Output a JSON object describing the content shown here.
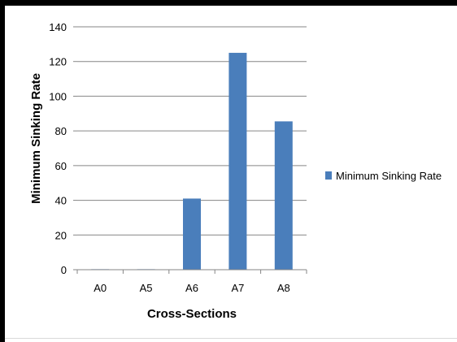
{
  "chart_data": {
    "type": "bar",
    "categories": [
      "A0",
      "A5",
      "A6",
      "A7",
      "A8"
    ],
    "series": [
      {
        "name": "Minimum Sinking Rate",
        "values": [
          0.3,
          0.3,
          41,
          125,
          85.5
        ],
        "color": "#4a7ebb"
      }
    ],
    "xlabel": "Cross-Sections",
    "ylabel": "Minimum Sinking Rate",
    "ylim": [
      0,
      140
    ],
    "yticks": [
      0,
      20,
      40,
      60,
      80,
      100,
      120,
      140
    ],
    "grid": true,
    "legend_position": "right"
  }
}
